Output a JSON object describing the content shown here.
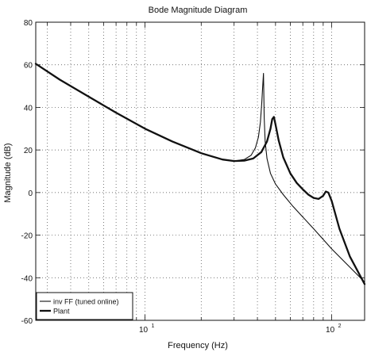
{
  "chart_data": {
    "type": "line",
    "title": "Bode Magnitude Diagram",
    "xlabel": "Frequency (Hz)",
    "ylabel": "Magnitude (dB)",
    "x_scale": "log",
    "xlim": [
      2.6,
      150
    ],
    "ylim": [
      -60,
      80
    ],
    "yticks": [
      -60,
      -40,
      -20,
      0,
      20,
      40,
      60,
      80
    ],
    "xticks": [
      {
        "value": 10,
        "base": "10",
        "exp": "1"
      },
      {
        "value": 100,
        "base": "10",
        "exp": "2"
      }
    ],
    "grid": true,
    "grid_style": "dotted",
    "legend_position": "bottom-left",
    "series": [
      {
        "name": "inv FF (tuned online)",
        "color": "#111111",
        "line_width": 1.1,
        "x": [
          2.6,
          3.5,
          5,
          7,
          10,
          14,
          20,
          26,
          30,
          34,
          37,
          39,
          40.5,
          41.5,
          42.2,
          42.7,
          43.1,
          43.5,
          44,
          45,
          47,
          50,
          55,
          62,
          70,
          80,
          90,
          100,
          120,
          150
        ],
        "y": [
          60.5,
          53,
          45,
          37.5,
          30,
          24,
          18.5,
          15.5,
          14.8,
          15.5,
          17.5,
          21,
          26,
          33,
          42,
          50,
          56,
          35,
          24,
          16,
          9,
          4,
          -1,
          -6.5,
          -11.5,
          -17,
          -22,
          -26.5,
          -33.5,
          -42
        ]
      },
      {
        "name": "Plant",
        "color": "#111111",
        "line_width": 2.3,
        "x": [
          2.6,
          3.5,
          5,
          7,
          10,
          14,
          20,
          26,
          30,
          34,
          38,
          42,
          45,
          47,
          48,
          49,
          50,
          52,
          55,
          60,
          65,
          70,
          75,
          80,
          85,
          90,
          93,
          96,
          100,
          110,
          125,
          150
        ],
        "y": [
          60.5,
          53,
          45,
          37.5,
          30,
          24,
          18.5,
          15.5,
          14.8,
          15,
          16,
          19,
          24,
          30,
          34.5,
          35.5,
          32,
          24.5,
          16.5,
          9,
          4.5,
          1.5,
          -1,
          -2.5,
          -3,
          -1.5,
          0.5,
          0,
          -4,
          -17,
          -30,
          -43
        ]
      }
    ]
  }
}
